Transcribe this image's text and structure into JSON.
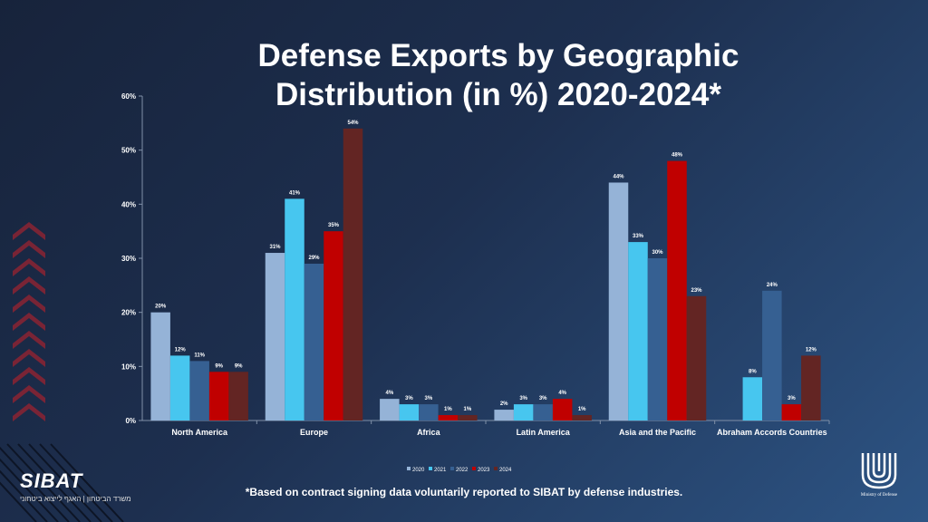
{
  "chart_data": {
    "type": "bar",
    "title": "Defense Exports by Geographic Distribution (in %) 2020-2024*",
    "categories": [
      "North America",
      "Europe",
      "Africa",
      "Latin America",
      "Asia and the Pacific",
      "Abraham Accords Countries"
    ],
    "series": [
      {
        "name": "2020",
        "color": "#95b3d7",
        "values": [
          20,
          31,
          4,
          2,
          44,
          null
        ]
      },
      {
        "name": "2021",
        "color": "#47c6ef",
        "values": [
          12,
          41,
          3,
          3,
          33,
          8
        ]
      },
      {
        "name": "2022",
        "color": "#366092",
        "values": [
          11,
          29,
          3,
          3,
          30,
          24
        ]
      },
      {
        "name": "2023",
        "color": "#c00000",
        "values": [
          9,
          35,
          1,
          4,
          48,
          3
        ]
      },
      {
        "name": "2024",
        "color": "#632523",
        "values": [
          9,
          54,
          1,
          1,
          23,
          12
        ]
      }
    ],
    "ylim": [
      0,
      60
    ],
    "yticks": [
      "0%",
      "10%",
      "20%",
      "30%",
      "40%",
      "50%",
      "60%"
    ],
    "legend_placement": "bottom",
    "grid": false
  },
  "footnote": "*Based on contract signing data voluntarily reported to SIBAT by defense industries.",
  "logo": {
    "name": "SIBAT",
    "subtitle": "משרד הביטחון | האגף לייצוא ביטחוני"
  },
  "ministry": "Ministry of Defense"
}
